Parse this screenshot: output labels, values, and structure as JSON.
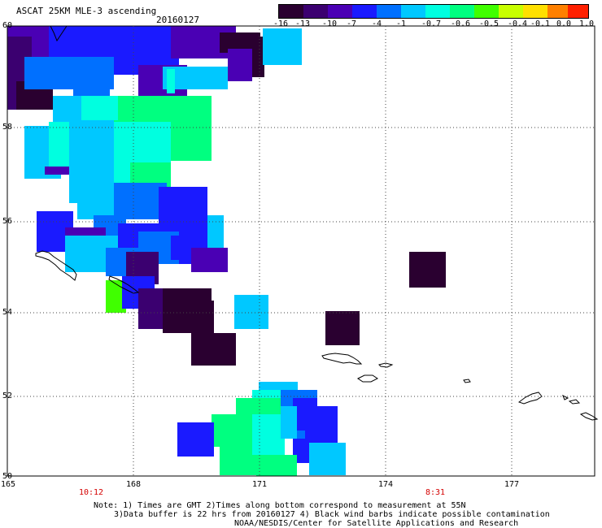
{
  "title": "ASCAT 25KM MLE-3 ascending",
  "date": "20160127",
  "colorbar": {
    "labels": [
      "-16",
      "-13",
      "-10",
      "-7",
      "-4",
      "-1",
      "-0.7",
      "-0.6",
      "-0.5",
      "-0.4",
      "-0.1",
      "0.0",
      "1.0"
    ],
    "colors": [
      "#2a0030",
      "#3b0070",
      "#4a00b4",
      "#1a1aff",
      "#0070ff",
      "#00c8ff",
      "#00ffe0",
      "#00ff80",
      "#40ff00",
      "#c8ff00",
      "#ffe000",
      "#ff8000",
      "#ff2000"
    ]
  },
  "axes": {
    "lat_labels": [
      "60",
      "58",
      "56",
      "54",
      "52",
      "50"
    ],
    "lon_labels": [
      "165",
      "168",
      "171",
      "174",
      "177"
    ]
  },
  "times": [
    "10:12",
    "8:31"
  ],
  "notes": [
    "Note: 1) Times are GMT 2)Times along bottom correspond to measurement at 55N",
    "3)Data buffer is 22 hrs from 20160127 4) Black wind barbs indicate possible contamination",
    "NOAA/NESDIS/Center for Satellite Applications and Research"
  ],
  "palette": {
    "dark": "#2a0030",
    "purple": "#3b0070",
    "violet": "#4a00b4",
    "blue": "#1a1aff",
    "midblue": "#0070ff",
    "cyan": "#00c8ff",
    "aqua": "#00ffe0",
    "green": "#00ff80",
    "lime": "#40ff00"
  }
}
